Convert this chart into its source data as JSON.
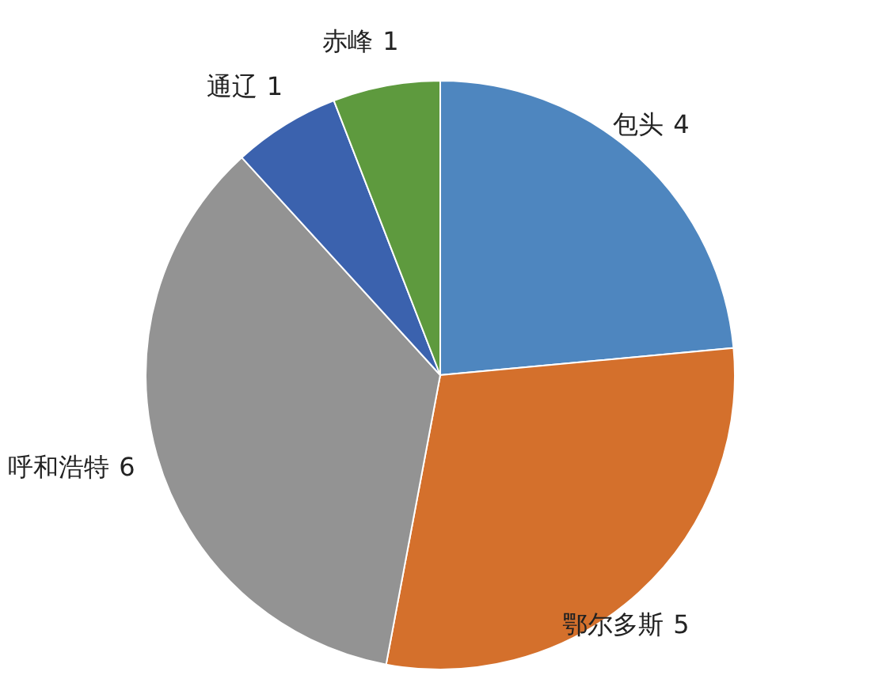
{
  "chart_data": {
    "type": "pie",
    "categories": [
      "包头",
      "鄂尔多斯",
      "呼和浩特",
      "通辽",
      "赤峰"
    ],
    "values": [
      4,
      5,
      6,
      1,
      1
    ],
    "colors": [
      "#4e86bf",
      "#d4702c",
      "#939393",
      "#3b62ae",
      "#5e9a3e"
    ],
    "data_labels": true
  }
}
